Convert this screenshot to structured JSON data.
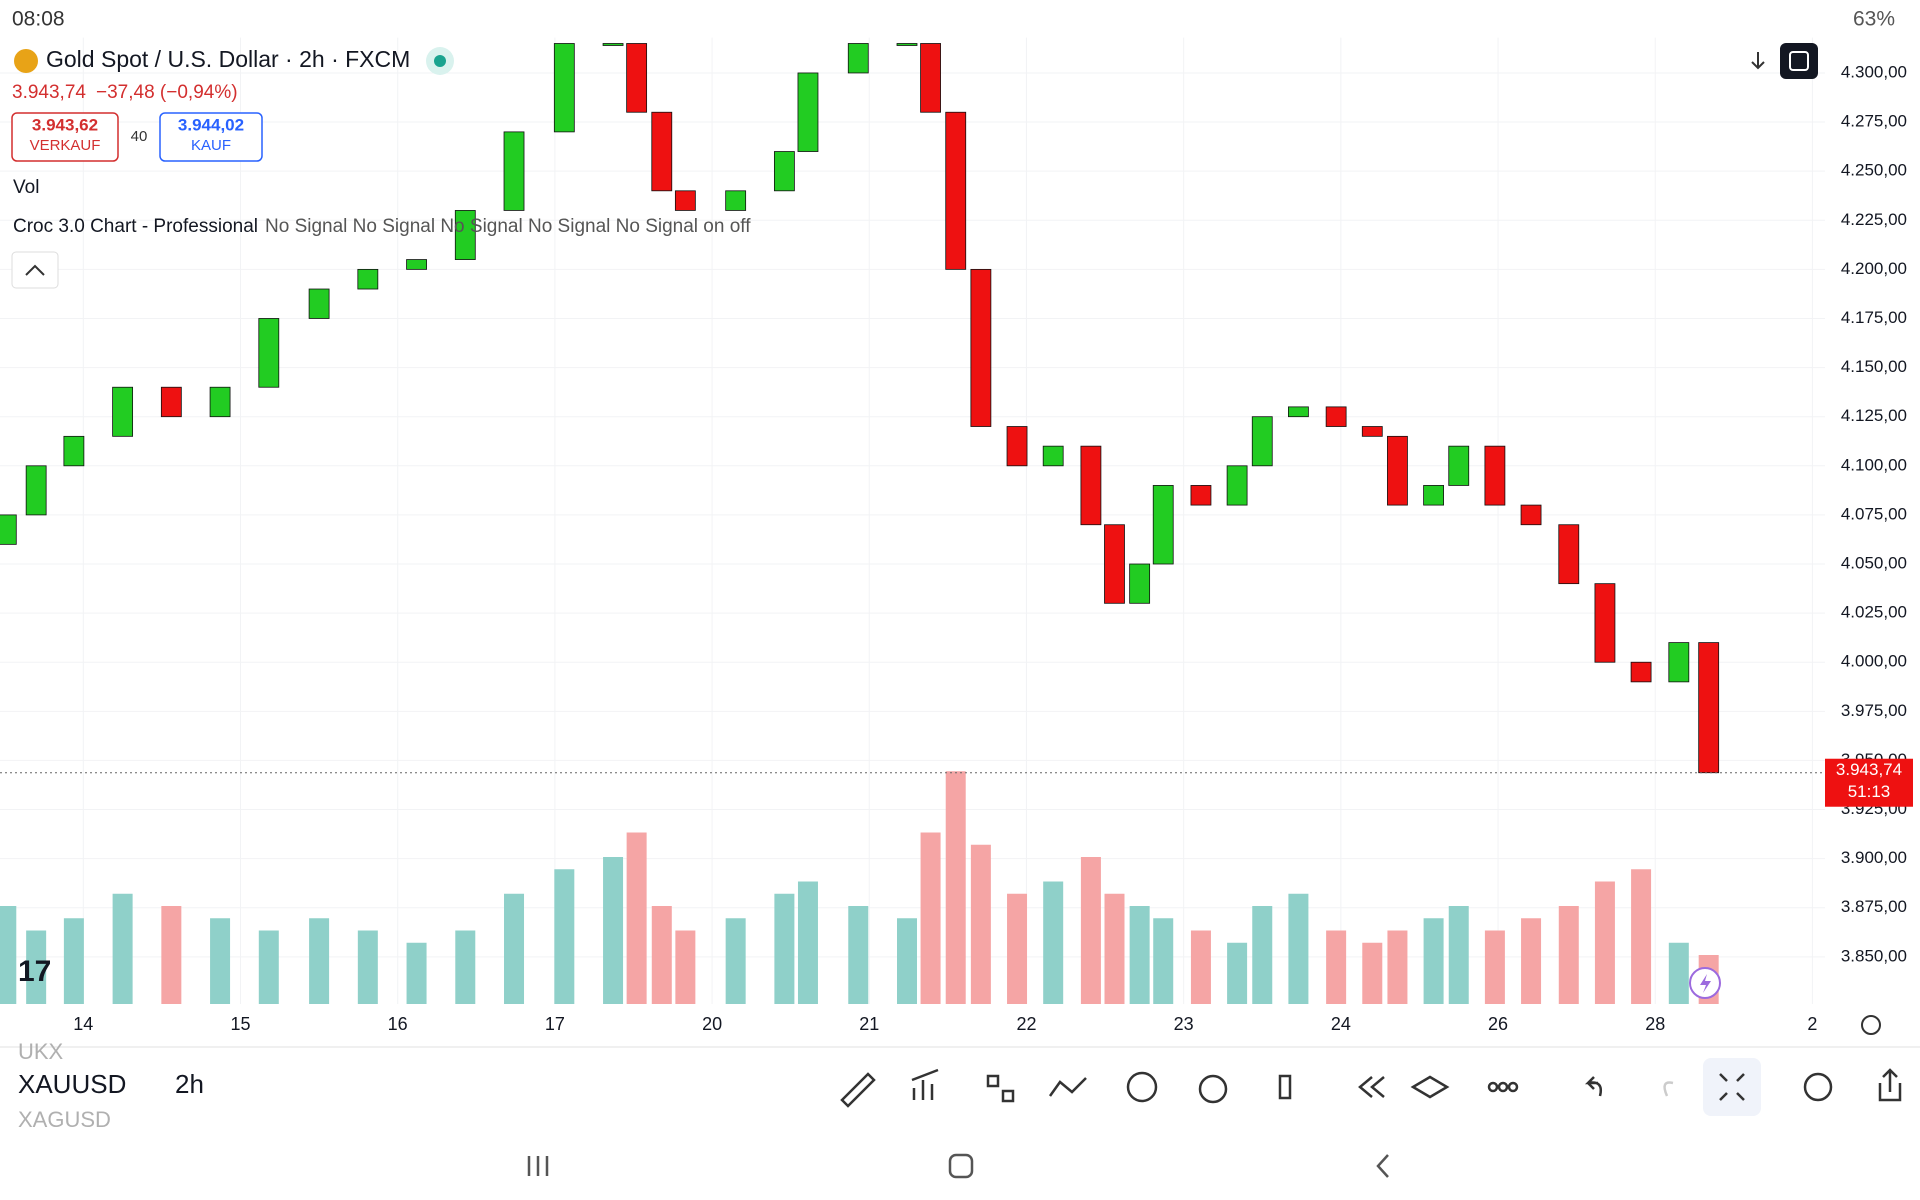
{
  "status_bar": {
    "time": "08:08",
    "battery": "63%"
  },
  "header": {
    "title": "Gold Spot / U.S. Dollar · 2h · FXCM",
    "price": "3.943,74",
    "change": "−37,48 (−0,94%)",
    "sell_price": "3.943,62",
    "sell_label": "VERKAUF",
    "spread": "40",
    "buy_price": "3.944,02",
    "buy_label": "KAUF",
    "volume_label": "Vol",
    "indicator_name": "Croc 3.0 Chart - Professional",
    "indicator_values": "No Signal No Signal No Signal No Signal No Signal on off"
  },
  "chart_data": {
    "type": "candlestick",
    "x": [
      -0.49,
      -0.3,
      -0.06,
      0.25,
      0.56,
      0.87,
      1.18,
      1.5,
      1.81,
      2.12,
      2.43,
      2.74,
      3.06,
      3.37,
      3.52,
      3.68,
      3.83,
      4.15,
      4.46,
      4.61,
      4.93,
      5.24,
      5.39,
      5.55,
      5.71,
      5.94,
      6.17,
      6.41,
      6.56,
      6.72,
      6.87,
      7.11,
      7.34,
      7.5,
      7.73,
      7.97,
      8.2,
      8.36,
      8.59,
      8.75,
      8.98,
      9.21,
      9.45,
      9.68,
      9.91,
      10.15,
      10.34
    ],
    "open": [
      4060,
      4075,
      4100,
      4115,
      4140,
      4125,
      4140,
      4175,
      4190,
      4200,
      4205,
      4230,
      4270,
      4315,
      4315,
      4280,
      4240,
      4230,
      4240,
      4260,
      4300,
      4315,
      4315,
      4280,
      4200,
      4120,
      4100,
      4110,
      4070,
      4030,
      4050,
      4090,
      4080,
      4100,
      4125,
      4130,
      4120,
      4115,
      4080,
      4090,
      4110,
      4080,
      4070,
      4040,
      4000,
      3990,
      4010
    ],
    "close": [
      4075,
      4100,
      4115,
      4140,
      4125,
      4140,
      4175,
      4190,
      4200,
      4205,
      4230,
      4270,
      4315,
      4315,
      4280,
      4240,
      4230,
      4240,
      4260,
      4300,
      4315,
      4315,
      4280,
      4200,
      4120,
      4100,
      4110,
      4070,
      4030,
      4050,
      4090,
      4080,
      4100,
      4125,
      4130,
      4120,
      4115,
      4080,
      4090,
      4110,
      4080,
      4070,
      4040,
      4000,
      3990,
      4010,
      3943.74
    ],
    "volume": [
      40,
      30,
      35,
      45,
      40,
      35,
      30,
      35,
      30,
      25,
      30,
      45,
      55,
      60,
      70,
      40,
      30,
      35,
      45,
      50,
      40,
      35,
      70,
      95,
      65,
      45,
      50,
      60,
      45,
      40,
      35,
      30,
      25,
      40,
      45,
      30,
      25,
      30,
      35,
      40,
      30,
      35,
      40,
      50,
      55,
      25,
      20
    ],
    "volume_lim": [
      0,
      100
    ],
    "up_color": "#22cc22",
    "down_color": "#ee1111",
    "volume_up_color": "#8fd0c9",
    "volume_down_color": "#f5a5a5",
    "xlim": [
      -0.53,
      11.08
    ],
    "xticks": [
      {
        "value": 0,
        "label": "14"
      },
      {
        "value": 1,
        "label": "15"
      },
      {
        "value": 2,
        "label": "16"
      },
      {
        "value": 3,
        "label": "17"
      },
      {
        "value": 4,
        "label": "20"
      },
      {
        "value": 5,
        "label": "21"
      },
      {
        "value": 6,
        "label": "22"
      },
      {
        "value": 7,
        "label": "23"
      },
      {
        "value": 8,
        "label": "24"
      },
      {
        "value": 9,
        "label": "26"
      },
      {
        "value": 10,
        "label": "28"
      },
      {
        "value": 11,
        "label": "2"
      }
    ],
    "ylim": [
      3826,
      4318
    ],
    "yticks": [
      {
        "value": 4300,
        "label": "4.300,00"
      },
      {
        "value": 4275,
        "label": "4.275,00"
      },
      {
        "value": 4250,
        "label": "4.250,00"
      },
      {
        "value": 4225,
        "label": "4.225,00"
      },
      {
        "value": 4200,
        "label": "4.200,00"
      },
      {
        "value": 4175,
        "label": "4.175,00"
      },
      {
        "value": 4150,
        "label": "4.150,00"
      },
      {
        "value": 4125,
        "label": "4.125,00"
      },
      {
        "value": 4100,
        "label": "4.100,00"
      },
      {
        "value": 4075,
        "label": "4.075,00"
      },
      {
        "value": 4050,
        "label": "4.050,00"
      },
      {
        "value": 4025,
        "label": "4.025,00"
      },
      {
        "value": 4000,
        "label": "4.000,00"
      },
      {
        "value": 3975,
        "label": "3.975,00"
      },
      {
        "value": 3950,
        "label": "3.950,00"
      },
      {
        "value": 3925,
        "label": "3.925,00"
      },
      {
        "value": 3900,
        "label": "3.900,00"
      },
      {
        "value": 3875,
        "label": "3.875,00"
      },
      {
        "value": 3850,
        "label": "3.850,00"
      }
    ],
    "grid": true,
    "last_price": {
      "value": 3943.74,
      "label": "3.943,74"
    },
    "countdown": "51:13"
  },
  "bottom_bar": {
    "prev_symbol": "UKX",
    "symbol": "XAUUSD",
    "interval": "2h",
    "next_symbol": "XAGUSD"
  }
}
